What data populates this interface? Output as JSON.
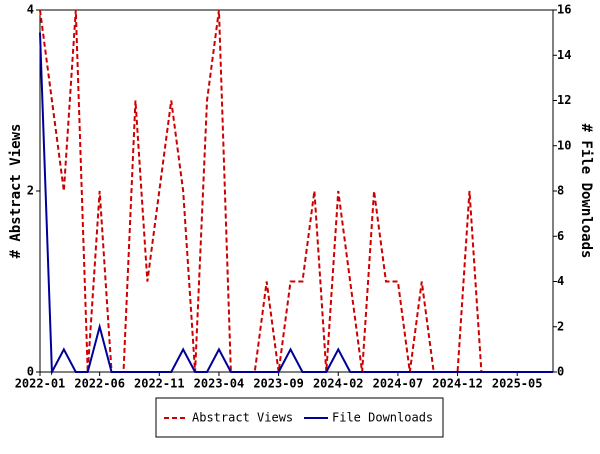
{
  "chart_data": {
    "type": "line",
    "categories": [
      "2022-01",
      null,
      null,
      null,
      null,
      "2022-06",
      null,
      null,
      null,
      null,
      "2022-11",
      null,
      null,
      null,
      null,
      "2023-04",
      null,
      null,
      null,
      null,
      "2023-09",
      null,
      null,
      null,
      null,
      "2024-02",
      null,
      null,
      null,
      null,
      "2024-07",
      null,
      null,
      null,
      null,
      "2024-12",
      null,
      null,
      null,
      null,
      "2025-05",
      null,
      null,
      null
    ],
    "series": [
      {
        "name": "Abstract Views",
        "color": "#cc0000",
        "dash": true,
        "values": [
          4,
          3,
          2,
          4,
          0,
          2,
          0,
          0,
          3,
          1,
          2,
          3,
          2,
          0,
          3,
          4,
          0,
          0,
          0,
          1,
          0,
          1,
          1,
          2,
          0,
          2,
          1,
          0,
          2,
          1,
          1,
          0,
          1,
          0,
          0,
          0,
          2,
          0,
          0,
          0,
          0,
          0,
          0,
          0
        ]
      },
      {
        "name": "File Downloads",
        "color": "#000099",
        "axis": "y2",
        "values": [
          15,
          0,
          1,
          0,
          0,
          2,
          0,
          0,
          0,
          0,
          0,
          0,
          1,
          0,
          0,
          1,
          0,
          0,
          0,
          0,
          0,
          1,
          0,
          0,
          0,
          1,
          0,
          0,
          0,
          0,
          0,
          0,
          0,
          0,
          0,
          0,
          0,
          0,
          0,
          0,
          0,
          0,
          0,
          0
        ]
      }
    ],
    "y_label": "# Abstract Views",
    "y2_label": "# File Downloads",
    "ylim": [
      0,
      4
    ],
    "yticks": [
      0,
      2,
      4
    ],
    "y2lim": [
      0,
      16
    ],
    "y2ticks": [
      0,
      2,
      4,
      6,
      8,
      10,
      12,
      14,
      16
    ]
  }
}
